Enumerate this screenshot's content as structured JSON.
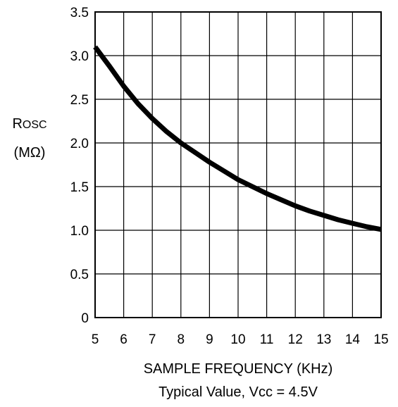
{
  "chart_data": {
    "type": "line",
    "title": "",
    "xlabel": "SAMPLE FREQUENCY (KHz)",
    "ylabel_line1": "ROSC",
    "ylabel_line2": "(MΩ)",
    "subtitle": "Typical Value, Vcc = 4.5V",
    "xlim": [
      5,
      15
    ],
    "ylim": [
      0,
      3.5
    ],
    "x_ticks": [
      "5",
      "6",
      "7",
      "8",
      "9",
      "10",
      "11",
      "12",
      "13",
      "14",
      "15"
    ],
    "y_ticks": [
      "0",
      "0.5",
      "1.0",
      "1.5",
      "2.0",
      "2.5",
      "3.0",
      "3.5"
    ],
    "grid": true,
    "series": [
      {
        "color": "#000000",
        "x": [
          5,
          5.5,
          6,
          6.5,
          7,
          7.5,
          8,
          8.5,
          9,
          9.5,
          10,
          10.5,
          11,
          11.5,
          12,
          12.5,
          13,
          13.5,
          14,
          14.5,
          15
        ],
        "y": [
          3.1,
          2.88,
          2.65,
          2.45,
          2.28,
          2.13,
          2.0,
          1.89,
          1.78,
          1.68,
          1.58,
          1.5,
          1.42,
          1.35,
          1.28,
          1.22,
          1.17,
          1.12,
          1.08,
          1.04,
          1.01
        ]
      }
    ]
  }
}
